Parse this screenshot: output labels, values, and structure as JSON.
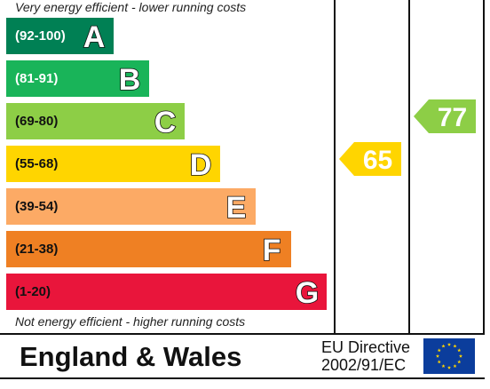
{
  "notes": {
    "top": "Very energy efficient - lower running costs",
    "bottom": "Not energy efficient - higher running costs"
  },
  "chart_data": {
    "type": "bar",
    "bands": [
      {
        "range": "(92-100)",
        "letter": "A",
        "color": "#008054",
        "text_color": "#ffffff",
        "level": 1
      },
      {
        "range": "(81-91)",
        "letter": "B",
        "color": "#19b459",
        "text_color": "#ffffff",
        "level": 2
      },
      {
        "range": "(69-80)",
        "letter": "C",
        "color": "#8dce46",
        "text_color": "#111111",
        "level": 3
      },
      {
        "range": "(55-68)",
        "letter": "D",
        "color": "#ffd500",
        "text_color": "#111111",
        "level": 4
      },
      {
        "range": "(39-54)",
        "letter": "E",
        "color": "#fcaa65",
        "text_color": "#111111",
        "level": 5
      },
      {
        "range": "(21-38)",
        "letter": "F",
        "color": "#ef8023",
        "text_color": "#111111",
        "level": 6
      },
      {
        "range": "(1-20)",
        "letter": "G",
        "color": "#e9153b",
        "text_color": "#111111",
        "level": 7
      }
    ],
    "ratings": [
      {
        "value": 65,
        "band": "D",
        "color": "#ffd500"
      },
      {
        "value": 77,
        "band": "C",
        "color": "#8dce46"
      }
    ]
  },
  "footer": {
    "region": "England & Wales",
    "directive_line1": "EU Directive",
    "directive_line2": "2002/91/EC"
  }
}
